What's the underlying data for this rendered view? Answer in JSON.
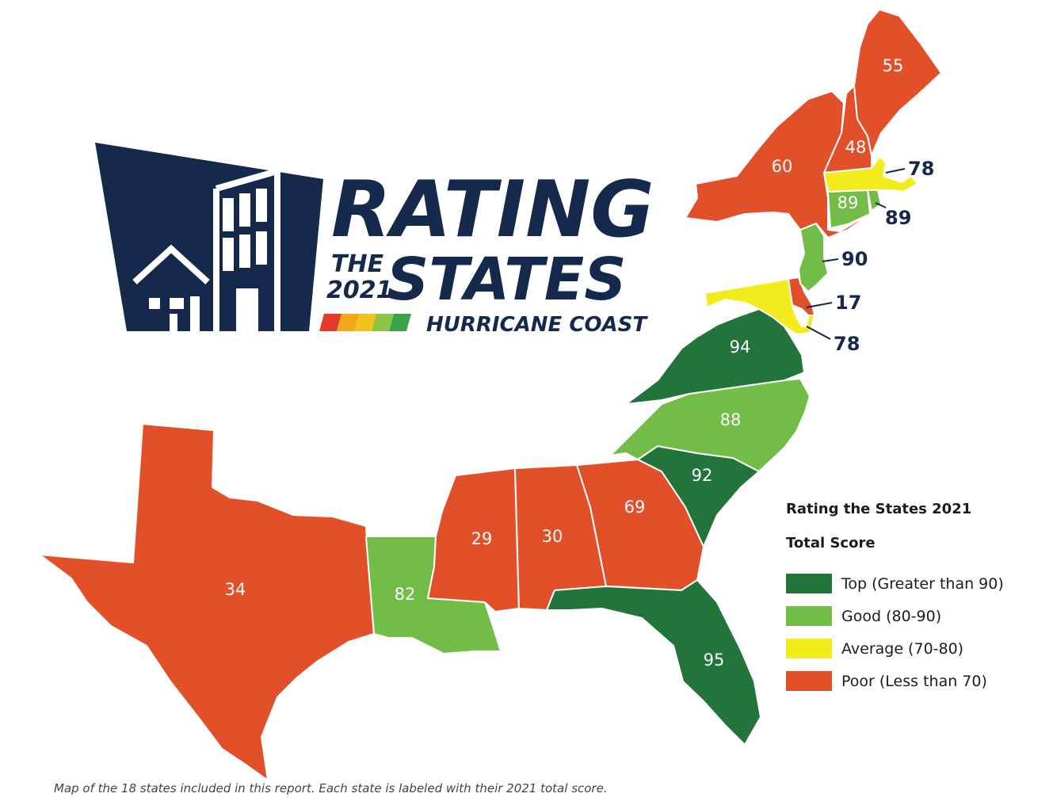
{
  "colors": {
    "top": "#22743a",
    "good": "#72bd48",
    "average": "#f2ec1c",
    "poor": "#e2502a",
    "navy": "#14294b"
  },
  "logo": {
    "line1": "RATING",
    "the": "THE",
    "year": "2021",
    "line2": "STATES",
    "subtitle": "HURRICANE COAST",
    "stripe_colors": [
      "#e53a2b",
      "#f4a61c",
      "#f2c21a",
      "#8cc444",
      "#3aa24a"
    ]
  },
  "states": [
    {
      "id": "texas",
      "score": "34",
      "category": "poor"
    },
    {
      "id": "louisiana",
      "score": "82",
      "category": "good"
    },
    {
      "id": "mississippi",
      "score": "29",
      "category": "poor"
    },
    {
      "id": "alabama",
      "score": "30",
      "category": "poor"
    },
    {
      "id": "georgia",
      "score": "69",
      "category": "poor"
    },
    {
      "id": "florida",
      "score": "95",
      "category": "top"
    },
    {
      "id": "south-carolina",
      "score": "92",
      "category": "top"
    },
    {
      "id": "north-carolina",
      "score": "88",
      "category": "good"
    },
    {
      "id": "virginia",
      "score": "94",
      "category": "top"
    },
    {
      "id": "maryland",
      "score": "78",
      "category": "average"
    },
    {
      "id": "delaware",
      "score": "17",
      "category": "poor"
    },
    {
      "id": "new-jersey",
      "score": "90",
      "category": "good"
    },
    {
      "id": "new-york",
      "score": "60",
      "category": "poor"
    },
    {
      "id": "connecticut",
      "score": "89",
      "category": "good"
    },
    {
      "id": "rhode-island",
      "score": "89",
      "category": "good"
    },
    {
      "id": "massachusetts",
      "score": "78",
      "category": "average"
    },
    {
      "id": "new-hampshire",
      "score": "48",
      "category": "poor"
    },
    {
      "id": "maine",
      "score": "55",
      "category": "poor"
    }
  ],
  "legend": {
    "title": "Rating the States 2021",
    "subtitle": "Total Score",
    "items": [
      {
        "label": "Top (Greater than 90)",
        "category": "top"
      },
      {
        "label": "Good (80-90)",
        "category": "good"
      },
      {
        "label": "Average (70-80)",
        "category": "average"
      },
      {
        "label": "Poor (Less than 70)",
        "category": "poor"
      }
    ]
  },
  "caption": "Map of the 18 states included in this report. Each state is labeled with their 2021 total score."
}
